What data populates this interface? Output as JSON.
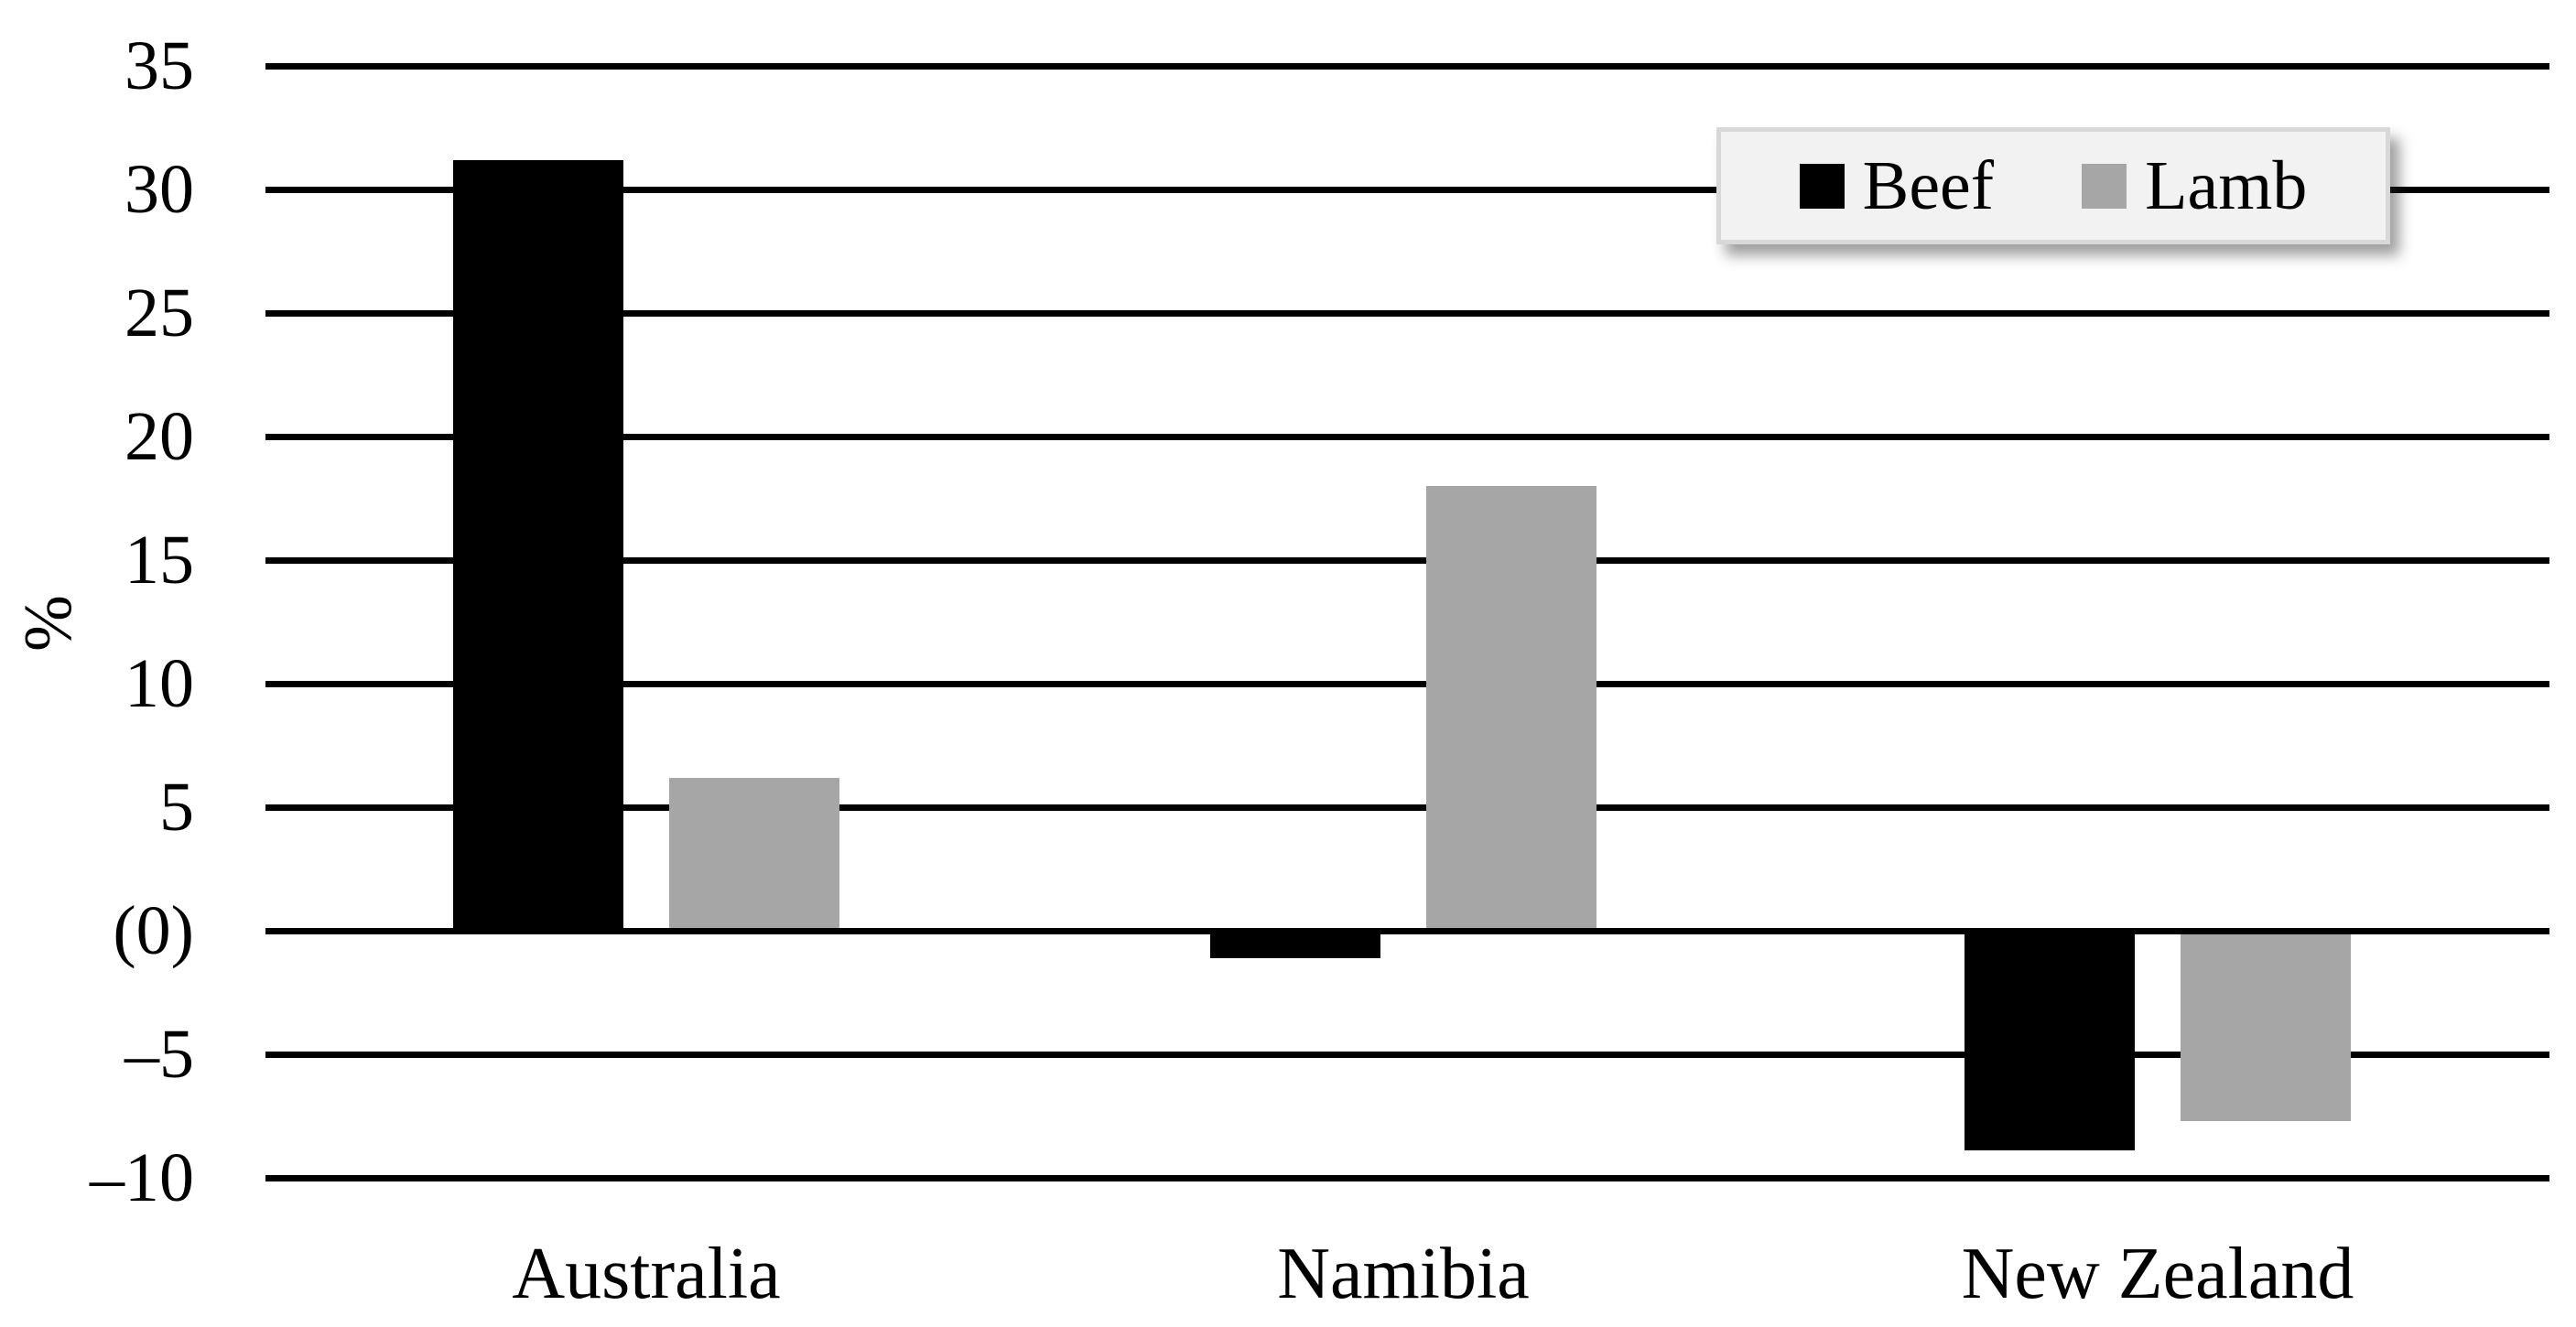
{
  "chart_data": {
    "type": "bar",
    "title": "",
    "ylabel": "%",
    "xlabel": "",
    "categories": [
      "Australia",
      "Namibia",
      "New Zealand"
    ],
    "series": [
      {
        "name": "Beef",
        "color": "#000000",
        "values": [
          31.2,
          -1.1,
          -8.9
        ]
      },
      {
        "name": "Lamb",
        "color": "#a6a6a6",
        "values": [
          6.2,
          18.0,
          -7.7
        ]
      }
    ],
    "y_axis": {
      "min": -10,
      "max": 35,
      "step": 5,
      "ticks": [
        {
          "value": 35,
          "label": "35"
        },
        {
          "value": 30,
          "label": "30"
        },
        {
          "value": 25,
          "label": "25"
        },
        {
          "value": 20,
          "label": "20"
        },
        {
          "value": 15,
          "label": "15"
        },
        {
          "value": 10,
          "label": "10"
        },
        {
          "value": 5,
          "label": "5"
        },
        {
          "value": 0,
          "label": "(0)"
        },
        {
          "value": -5,
          "label": "–5"
        },
        {
          "value": -10,
          "label": "–10"
        }
      ]
    },
    "grid": true,
    "legend": {
      "position": "top-right",
      "background": "#f2f2f2",
      "border": "#d8d8d8",
      "items": [
        "Beef",
        "Lamb"
      ]
    }
  }
}
